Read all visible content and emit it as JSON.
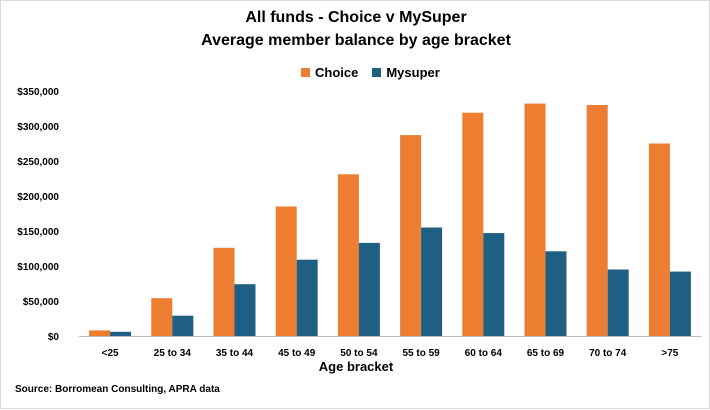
{
  "chart_data": {
    "type": "bar",
    "title": "All funds - Choice v MySuper",
    "subtitle": "Average member balance by age bracket",
    "xlabel": "Age bracket",
    "ylabel": "",
    "categories": [
      "<25",
      "25 to 34",
      "35 to 44",
      "45 to 49",
      "50 to 54",
      "55 to 59",
      "60 to 64",
      "65 to 69",
      "70 to 74",
      ">75"
    ],
    "series": [
      {
        "name": "Choice",
        "color": "#ed7d31",
        "values": [
          8000,
          54000,
          126000,
          185000,
          231000,
          287000,
          319000,
          332000,
          330000,
          275000
        ]
      },
      {
        "name": "Mysuper",
        "color": "#1f5f84",
        "values": [
          6000,
          29000,
          74000,
          109000,
          133000,
          155000,
          147000,
          121000,
          95000,
          92000
        ]
      }
    ],
    "ylim": [
      0,
      350000
    ],
    "yticks": [
      "$0",
      "$50,000",
      "$100,000",
      "$150,000",
      "$200,000",
      "$250,000",
      "$300,000",
      "$350,000"
    ],
    "ytick_values": [
      0,
      50000,
      100000,
      150000,
      200000,
      250000,
      300000,
      350000
    ],
    "grid": false,
    "legend_position": "top-center"
  },
  "source": "Source: Borromean Consulting, APRA data"
}
